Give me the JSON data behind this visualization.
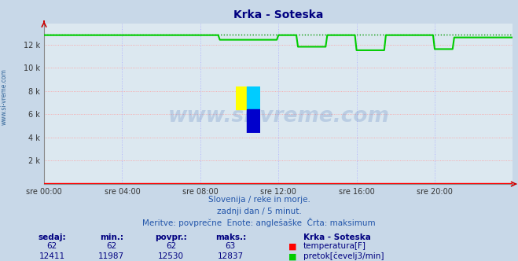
{
  "title": "Krka - Soteska",
  "title_color": "#000080",
  "bg_color": "#c8d8e8",
  "plot_bg_color": "#dce8f0",
  "grid_color_h": "#ff9999",
  "grid_color_v": "#aaaaff",
  "xlabel_ticks": [
    "sre 00:00",
    "sre 04:00",
    "sre 08:00",
    "sre 12:00",
    "sre 16:00",
    "sre 20:00"
  ],
  "tick_positions": [
    0,
    48,
    96,
    144,
    192,
    240
  ],
  "yticks": [
    0,
    2000,
    4000,
    6000,
    8000,
    10000,
    12000
  ],
  "ytick_labels": [
    "",
    "2 k",
    "4 k",
    "6 k",
    "8 k",
    "10 k",
    "12 k"
  ],
  "ylim": [
    0,
    13800
  ],
  "xlim": [
    0,
    288
  ],
  "temp_color": "#ff0000",
  "flow_color": "#00cc00",
  "flow_max_color": "#009900",
  "watermark_text": "www.si-vreme.com",
  "watermark_color": "#2255aa",
  "watermark_alpha": 0.18,
  "subtitle1": "Slovenija / reke in morje.",
  "subtitle2": "zadnji dan / 5 minut.",
  "subtitle3": "Meritve: povprečne  Enote: anglešaške  Črta: maksimum",
  "subtitle_color": "#2255aa",
  "legend_title": "Krka - Soteska",
  "legend_title_color": "#000080",
  "legend_temp_label": "temperatura[F]",
  "legend_flow_label": "pretok[čevelj3/min]",
  "stats_headers": [
    "sedaj:",
    "min.:",
    "povpr.:",
    "maks.:"
  ],
  "stats_temp": [
    62,
    62,
    62,
    63
  ],
  "stats_flow": [
    12411,
    11987,
    12530,
    12837
  ],
  "stats_color": "#000080",
  "temp_value": 62,
  "flow_max_value": 12837,
  "flow_segments": [
    {
      "start": 0,
      "end": 96,
      "value": 12800
    },
    {
      "start": 96,
      "end": 108,
      "value": 12800
    },
    {
      "start": 108,
      "end": 144,
      "value": 12400
    },
    {
      "start": 144,
      "end": 156,
      "value": 12800
    },
    {
      "start": 156,
      "end": 174,
      "value": 11800
    },
    {
      "start": 174,
      "end": 192,
      "value": 12800
    },
    {
      "start": 192,
      "end": 210,
      "value": 11500
    },
    {
      "start": 210,
      "end": 240,
      "value": 12800
    },
    {
      "start": 240,
      "end": 252,
      "value": 11600
    },
    {
      "start": 252,
      "end": 288,
      "value": 12600
    }
  ],
  "logo_yellow": "#ffff00",
  "logo_cyan": "#00ccff",
  "logo_blue": "#0000cc"
}
